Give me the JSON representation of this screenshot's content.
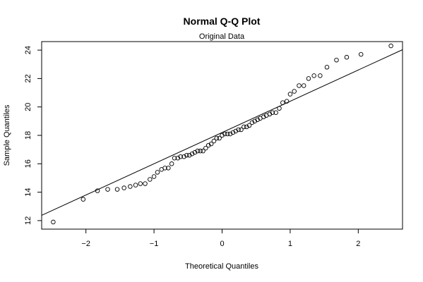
{
  "chart_data": {
    "type": "scatter",
    "title": "Normal Q-Q Plot",
    "subtitle": "Original Data",
    "xlabel": "Theoretical Quantiles",
    "ylabel": "Sample Quantiles",
    "xlim": [
      -2.65,
      2.65
    ],
    "ylim": [
      11.4,
      24.6
    ],
    "x_ticks": [
      -2,
      -1,
      0,
      1,
      2
    ],
    "x_tick_labels": [
      "−2",
      "−1",
      "0",
      "1",
      "2"
    ],
    "y_ticks": [
      12,
      14,
      16,
      18,
      20,
      22,
      24
    ],
    "y_tick_labels": [
      "12",
      "14",
      "16",
      "18",
      "20",
      "22",
      "24"
    ],
    "grid": false,
    "reference_line": {
      "intercept": 18.2,
      "slope": 2.2
    },
    "points": {
      "x": [
        -2.48,
        -2.04,
        -1.83,
        -1.68,
        -1.54,
        -1.44,
        -1.35,
        -1.27,
        -1.2,
        -1.13,
        -1.06,
        -1.0,
        -0.95,
        -0.89,
        -0.84,
        -0.79,
        -0.74,
        -0.7,
        -0.65,
        -0.61,
        -0.56,
        -0.52,
        -0.48,
        -0.44,
        -0.4,
        -0.36,
        -0.32,
        -0.28,
        -0.24,
        -0.2,
        -0.16,
        -0.12,
        -0.08,
        -0.04,
        0.0,
        0.04,
        0.08,
        0.12,
        0.16,
        0.2,
        0.24,
        0.28,
        0.32,
        0.36,
        0.4,
        0.44,
        0.48,
        0.52,
        0.56,
        0.61,
        0.65,
        0.7,
        0.74,
        0.79,
        0.84,
        0.89,
        0.95,
        1.0,
        1.06,
        1.13,
        1.2,
        1.27,
        1.35,
        1.44,
        1.54,
        1.68,
        1.83,
        2.04,
        2.48
      ],
      "y": [
        11.9,
        13.5,
        14.1,
        14.2,
        14.2,
        14.3,
        14.4,
        14.5,
        14.6,
        14.6,
        14.9,
        15.1,
        15.4,
        15.6,
        15.7,
        15.7,
        16.0,
        16.4,
        16.4,
        16.5,
        16.5,
        16.6,
        16.6,
        16.7,
        16.8,
        16.9,
        16.9,
        16.9,
        17.1,
        17.3,
        17.4,
        17.6,
        17.8,
        17.8,
        18.0,
        18.1,
        18.1,
        18.1,
        18.2,
        18.3,
        18.4,
        18.4,
        18.6,
        18.6,
        18.7,
        18.9,
        19.0,
        19.1,
        19.2,
        19.3,
        19.4,
        19.5,
        19.6,
        19.6,
        19.9,
        20.3,
        20.4,
        20.9,
        21.1,
        21.5,
        21.5,
        22.0,
        22.2,
        22.2,
        22.8,
        23.3,
        23.5,
        23.7,
        24.3
      ]
    }
  }
}
